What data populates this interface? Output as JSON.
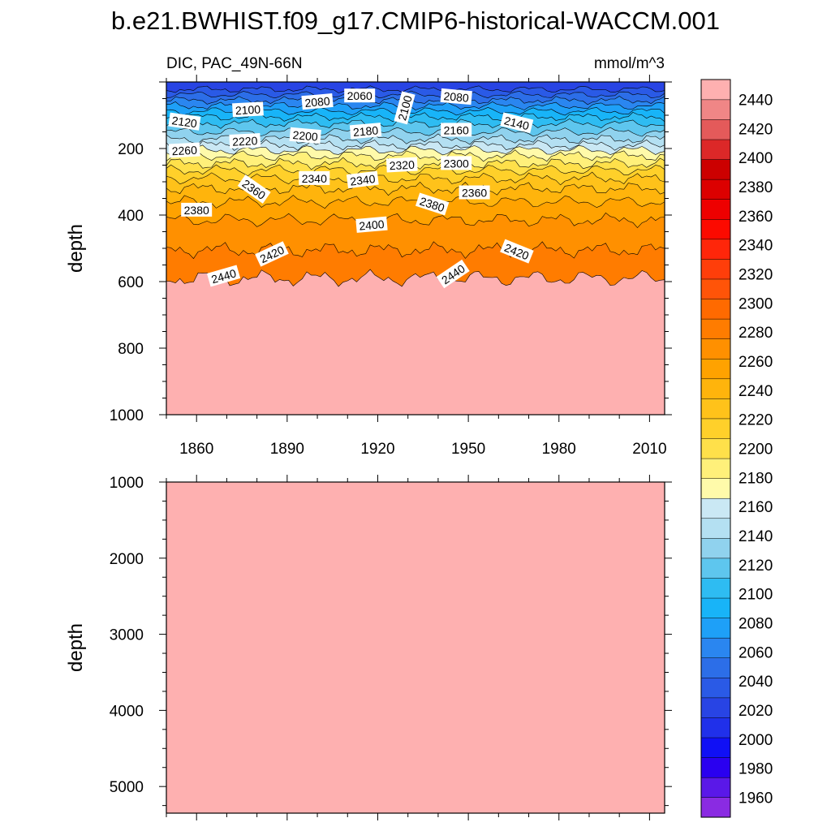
{
  "title": "b.e21.BWHIST.f09_g17.CMIP6-historical-WACCM.001",
  "chart_data": [
    {
      "type": "heatmap",
      "panel": "upper",
      "left_string": "DIC, PAC_49N-66N",
      "right_string": "mmol/m^3",
      "ylabel": "depth",
      "xlim": [
        1850,
        2015
      ],
      "ylim": [
        1000,
        0
      ],
      "x_ticks": [
        1860,
        1890,
        1920,
        1950,
        1980,
        2010
      ],
      "y_ticks": [
        200,
        400,
        600,
        800,
        1000
      ],
      "contour_lines": [
        {
          "level": 2060,
          "depth": 22
        },
        {
          "level": 2080,
          "depth": 38
        },
        {
          "level": 2100,
          "depth": 55
        },
        {
          "level": 2120,
          "depth": 72
        },
        {
          "level": 2140,
          "depth": 88
        },
        {
          "level": 2160,
          "depth": 105
        },
        {
          "level": 2180,
          "depth": 125
        },
        {
          "level": 2200,
          "depth": 150
        },
        {
          "level": 2220,
          "depth": 172
        },
        {
          "level": 2240,
          "depth": 190
        },
        {
          "level": 2260,
          "depth": 205
        },
        {
          "level": 2280,
          "depth": 222
        },
        {
          "level": 2300,
          "depth": 245
        },
        {
          "level": 2320,
          "depth": 265
        },
        {
          "level": 2340,
          "depth": 290
        },
        {
          "level": 2360,
          "depth": 320
        },
        {
          "level": 2380,
          "depth": 360
        },
        {
          "level": 2400,
          "depth": 415
        },
        {
          "level": 2420,
          "depth": 505
        },
        {
          "level": 2440,
          "depth": 590
        }
      ],
      "contour_labels": [
        {
          "text": "2060",
          "x": 1914,
          "depth": 42,
          "angle": 0
        },
        {
          "text": "2080",
          "x": 1900,
          "depth": 60,
          "angle": -5
        },
        {
          "text": "2080",
          "x": 1946,
          "depth": 45,
          "angle": 5
        },
        {
          "text": "2100",
          "x": 1877,
          "depth": 84,
          "angle": -3
        },
        {
          "text": "2100",
          "x": 1929,
          "depth": 78,
          "angle": -75
        },
        {
          "text": "2120",
          "x": 1856,
          "depth": 120,
          "angle": 8
        },
        {
          "text": "2140",
          "x": 1966,
          "depth": 124,
          "angle": 14
        },
        {
          "text": "2160",
          "x": 1946,
          "depth": 145,
          "angle": 0
        },
        {
          "text": "2180",
          "x": 1916,
          "depth": 148,
          "angle": -5
        },
        {
          "text": "2200",
          "x": 1896,
          "depth": 162,
          "angle": 5
        },
        {
          "text": "2220",
          "x": 1876,
          "depth": 178,
          "angle": -3
        },
        {
          "text": "2260",
          "x": 1856,
          "depth": 206,
          "angle": -3
        },
        {
          "text": "2300",
          "x": 1946,
          "depth": 245,
          "angle": 0
        },
        {
          "text": "2320",
          "x": 1928,
          "depth": 250,
          "angle": -3
        },
        {
          "text": "2340",
          "x": 1899,
          "depth": 290,
          "angle": 0
        },
        {
          "text": "2340",
          "x": 1915,
          "depth": 295,
          "angle": -7
        },
        {
          "text": "2360",
          "x": 1879,
          "depth": 323,
          "angle": 35
        },
        {
          "text": "2360",
          "x": 1952,
          "depth": 333,
          "angle": 0
        },
        {
          "text": "2380",
          "x": 1938,
          "depth": 368,
          "angle": 18
        },
        {
          "text": "2380",
          "x": 1860,
          "depth": 385,
          "angle": 0
        },
        {
          "text": "2400",
          "x": 1918,
          "depth": 430,
          "angle": -5
        },
        {
          "text": "2420",
          "x": 1966,
          "depth": 510,
          "angle": 22
        },
        {
          "text": "2420",
          "x": 1885,
          "depth": 518,
          "angle": -25
        },
        {
          "text": "2440",
          "x": 1869,
          "depth": 584,
          "angle": -16
        },
        {
          "text": "2440",
          "x": 1945,
          "depth": 578,
          "angle": -34
        }
      ]
    },
    {
      "type": "heatmap",
      "panel": "lower",
      "ylabel": "depth",
      "xlim": [
        1850,
        2015
      ],
      "ylim": [
        5350,
        1000
      ],
      "y_ticks": [
        1000,
        2000,
        3000,
        4000,
        5000
      ],
      "fill_level": "above 2440"
    }
  ],
  "colorbar": {
    "levels": [
      1960,
      1980,
      2000,
      2020,
      2040,
      2060,
      2080,
      2100,
      2120,
      2140,
      2160,
      2180,
      2200,
      2220,
      2240,
      2260,
      2280,
      2300,
      2320,
      2340,
      2360,
      2380,
      2400,
      2420,
      2440
    ],
    "colors": [
      "#8a2be2",
      "#5a18e8",
      "#2a00f0",
      "#1010f5",
      "#2030ea",
      "#2844e4",
      "#2a5ae6",
      "#2c6ee8",
      "#2a86f0",
      "#1ea0f8",
      "#18b4f8",
      "#2ebcf2",
      "#5ec6ee",
      "#90d2ee",
      "#b4e0f2",
      "#cae8f4",
      "#fffaaa",
      "#fff07a",
      "#ffe04a",
      "#ffd02a",
      "#ffc21a",
      "#ffb40c",
      "#ffa200",
      "#ff9000",
      "#ff7c00",
      "#ff6a00",
      "#ff5408",
      "#ff3e0a",
      "#ff260a",
      "#fc0a00",
      "#ee0000",
      "#dc0000",
      "#cc0000",
      "#dc2828",
      "#e45a5a",
      "#f08686",
      "#feb0b0"
    ],
    "labels": [
      "1960",
      "1980",
      "2000",
      "2020",
      "2040",
      "2060",
      "2080",
      "2100",
      "2120",
      "2140",
      "2160",
      "2180",
      "2200",
      "2220",
      "2240",
      "2260",
      "2280",
      "2300",
      "2320",
      "2340",
      "2360",
      "2380",
      "2400",
      "2420",
      "2440"
    ]
  }
}
